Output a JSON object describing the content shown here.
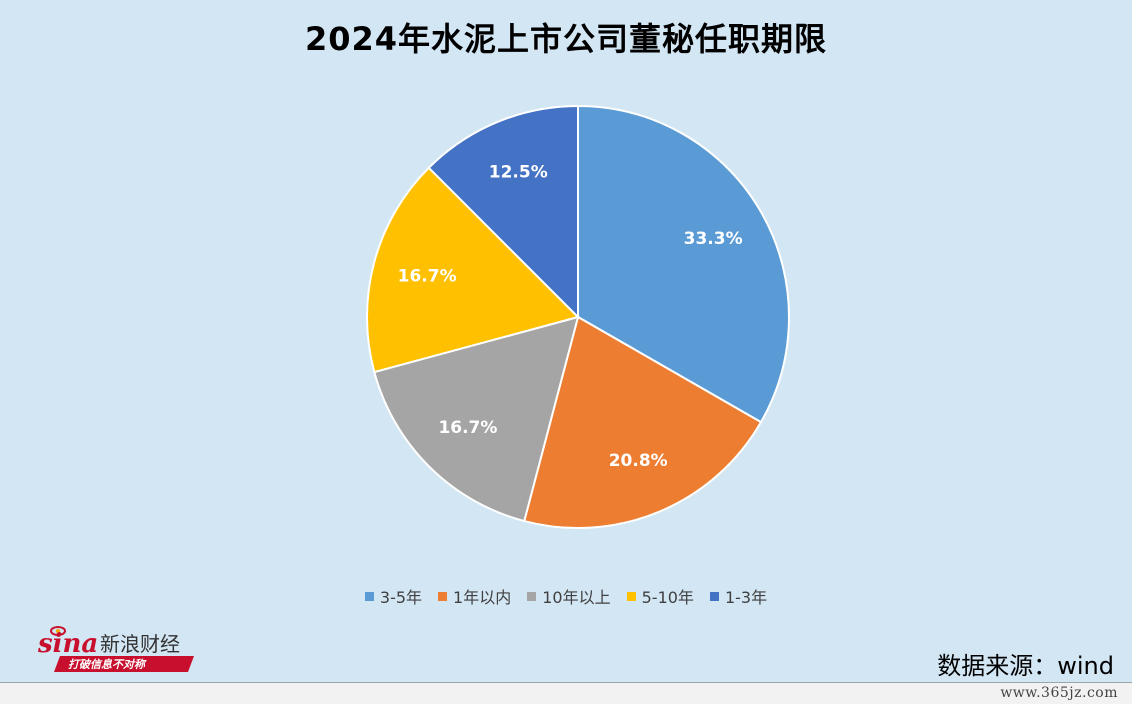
{
  "chart_data": {
    "type": "pie",
    "title": "2024年水泥上市公司董秘任职期限",
    "categories": [
      "3-5年",
      "1年以内",
      "10年以上",
      "5-10年",
      "1-3年"
    ],
    "values": [
      33.3,
      20.8,
      16.7,
      16.7,
      12.5
    ],
    "labels": [
      "33.3%",
      "20.8%",
      "16.7%",
      "16.7%",
      "12.5%"
    ],
    "colors": [
      "#5b9bd5",
      "#ed7d31",
      "#a5a5a5",
      "#ffc000",
      "#4472c4"
    ],
    "start_angle_deg": 0,
    "direction": "clockwise",
    "legend_position": "bottom"
  },
  "logo": {
    "brand": "sina",
    "name": "新浪财经",
    "slogan": "打破信息不对称"
  },
  "source": "数据来源：wind",
  "watermark": "www.365jz.com"
}
